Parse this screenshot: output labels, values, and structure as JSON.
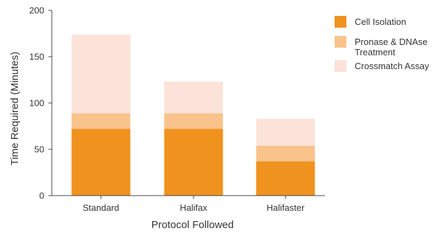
{
  "chart_data": {
    "type": "bar",
    "stacked": true,
    "categories": [
      "Standard",
      "Halifax",
      "Halifaster"
    ],
    "series": [
      {
        "name": "Cell Isolation",
        "values": [
          72,
          72,
          37
        ],
        "color": "#F0921E"
      },
      {
        "name": "Pronase & DNAse Treatment",
        "values": [
          17,
          17,
          17
        ],
        "color": "#F9C38C"
      },
      {
        "name": "Crossmatch Assay",
        "values": [
          85,
          34,
          29
        ],
        "color": "#FBE3DA"
      }
    ],
    "xlabel": "Protocol Followed",
    "ylabel": "Time Required (Minutes)",
    "ylim": [
      0,
      200
    ],
    "yticks": [
      0,
      50,
      100,
      150,
      200
    ],
    "grid": false,
    "legend": "right"
  }
}
